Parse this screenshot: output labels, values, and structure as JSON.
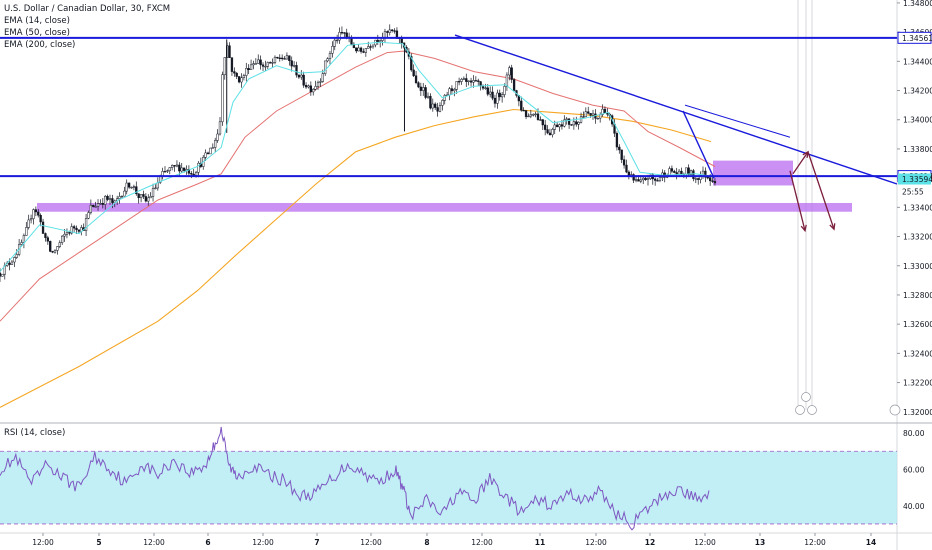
{
  "header": {
    "symbol_title": "U.S. Dollar / Canadian Dollar, 30, FXCM",
    "indicators": [
      "EMA (14, close)",
      "EMA (50, close)",
      "EMA (200, close)"
    ]
  },
  "rsi_panel": {
    "title": "RSI (14, close)"
  },
  "colors": {
    "candle": "#131722",
    "ema14": "#5ce1e6",
    "ema50": "#e57373",
    "ema200": "#f5a623",
    "hline": "#1a1adb",
    "trend": "#1a1adb",
    "zone": "#b86bf0",
    "arrow": "#7b1f3c",
    "rsi_line": "#7e57c2",
    "rsi_band": "#b2ebf2",
    "rsi_dashed": "#a05cc8"
  },
  "chart_data": [
    {
      "type": "candlestick",
      "title": "U.S. Dollar / Canadian Dollar, 30, FXCM",
      "x_ticks": [
        "12:00",
        "5",
        "12:00",
        "6",
        "12:00",
        "7",
        "12:00",
        "8",
        "12:00",
        "11",
        "12:00",
        "12",
        "12:00",
        "13",
        "12:00",
        "14"
      ],
      "y_ticks": [
        1.348,
        1.346,
        1.344,
        1.342,
        1.34,
        1.338,
        1.336,
        1.334,
        1.332,
        1.33,
        1.328,
        1.326,
        1.324,
        1.322,
        1.32
      ],
      "ylim": [
        1.3193,
        1.3482
      ],
      "grid": false,
      "price_labels": [
        {
          "label": "1.34561",
          "value": 1.34561,
          "style": "blue-outline"
        },
        {
          "label": "1.33614",
          "value": 1.33614,
          "style": "blue-outline"
        },
        {
          "label": "1.33594",
          "value": 1.33594,
          "style": "cyan-fill"
        },
        {
          "label": "25:55",
          "value": 1.3351,
          "style": "plain"
        }
      ],
      "horizontal_lines": [
        1.34561,
        1.33614
      ],
      "trendline": {
        "from": [
          0.0,
          1.3458
        ],
        "to": [
          1.0,
          1.3362
        ]
      },
      "upper_channel": {
        "from": [
          0.0,
          1.3411
        ],
        "to": [
          1.0,
          1.3391
        ]
      },
      "zones": [
        {
          "y_top": 1.3372,
          "y_bottom": 1.3355,
          "x_start": 0.0,
          "x_end": 1.0
        },
        {
          "y_top": 1.3343,
          "y_bottom": 1.3337,
          "x_start": 0.0,
          "x_end": 1.0
        }
      ],
      "arrows": [
        {
          "from": [
            0,
            1.3365
          ],
          "to": [
            0,
            1.3324
          ]
        },
        {
          "from": [
            0,
            1.3363
          ],
          "to": [
            0,
            1.3378
          ]
        },
        {
          "from": [
            0,
            1.3378
          ],
          "to": [
            0,
            1.3325
          ]
        }
      ],
      "price_path": [
        [
          0,
          1.3295
        ],
        [
          0.012,
          1.3302
        ],
        [
          0.022,
          1.331
        ],
        [
          0.03,
          1.3318
        ],
        [
          0.038,
          1.3332
        ],
        [
          0.043,
          1.3341
        ],
        [
          0.05,
          1.3332
        ],
        [
          0.058,
          1.3318
        ],
        [
          0.065,
          1.3308
        ],
        [
          0.073,
          1.3313
        ],
        [
          0.083,
          1.3322
        ],
        [
          0.095,
          1.3327
        ],
        [
          0.105,
          1.3325
        ],
        [
          0.115,
          1.334
        ],
        [
          0.125,
          1.3343
        ],
        [
          0.135,
          1.3346
        ],
        [
          0.145,
          1.3342
        ],
        [
          0.155,
          1.3351
        ],
        [
          0.165,
          1.3357
        ],
        [
          0.175,
          1.3348
        ],
        [
          0.185,
          1.3344
        ],
        [
          0.195,
          1.3352
        ],
        [
          0.205,
          1.3362
        ],
        [
          0.215,
          1.3366
        ],
        [
          0.225,
          1.3368
        ],
        [
          0.235,
          1.3366
        ],
        [
          0.245,
          1.3364
        ],
        [
          0.255,
          1.3371
        ],
        [
          0.262,
          1.3376
        ],
        [
          0.27,
          1.3383
        ],
        [
          0.278,
          1.3394
        ],
        [
          0.282,
          1.3438
        ],
        [
          0.287,
          1.3452
        ],
        [
          0.295,
          1.3431
        ],
        [
          0.305,
          1.3427
        ],
        [
          0.315,
          1.3437
        ],
        [
          0.325,
          1.3441
        ],
        [
          0.335,
          1.3436
        ],
        [
          0.345,
          1.3439
        ],
        [
          0.355,
          1.3443
        ],
        [
          0.365,
          1.3441
        ],
        [
          0.375,
          1.3433
        ],
        [
          0.385,
          1.3425
        ],
        [
          0.395,
          1.3421
        ],
        [
          0.405,
          1.3428
        ],
        [
          0.415,
          1.3443
        ],
        [
          0.425,
          1.3455
        ],
        [
          0.435,
          1.346
        ],
        [
          0.445,
          1.3452
        ],
        [
          0.455,
          1.3446
        ],
        [
          0.465,
          1.345
        ],
        [
          0.475,
          1.3455
        ],
        [
          0.485,
          1.3457
        ],
        [
          0.495,
          1.3461
        ],
        [
          0.505,
          1.3455
        ],
        [
          0.512,
          1.3451
        ],
        [
          0.518,
          1.3441
        ],
        [
          0.525,
          1.3425
        ],
        [
          0.535,
          1.3422
        ],
        [
          0.545,
          1.341
        ],
        [
          0.555,
          1.3405
        ],
        [
          0.565,
          1.3417
        ],
        [
          0.575,
          1.3423
        ],
        [
          0.585,
          1.3426
        ],
        [
          0.595,
          1.3424
        ],
        [
          0.605,
          1.3425
        ],
        [
          0.615,
          1.3421
        ],
        [
          0.625,
          1.3413
        ],
        [
          0.635,
          1.3419
        ],
        [
          0.645,
          1.3434
        ],
        [
          0.652,
          1.3419
        ],
        [
          0.66,
          1.3408
        ],
        [
          0.668,
          1.3402
        ],
        [
          0.675,
          1.3406
        ],
        [
          0.685,
          1.3399
        ],
        [
          0.695,
          1.3391
        ],
        [
          0.705,
          1.3397
        ],
        [
          0.715,
          1.3399
        ],
        [
          0.725,
          1.3397
        ],
        [
          0.735,
          1.3402
        ],
        [
          0.745,
          1.3404
        ],
        [
          0.755,
          1.34
        ],
        [
          0.765,
          1.3408
        ],
        [
          0.772,
          1.3401
        ],
        [
          0.778,
          1.3388
        ],
        [
          0.785,
          1.3376
        ],
        [
          0.792,
          1.3366
        ],
        [
          0.8,
          1.3359
        ],
        [
          0.81,
          1.3356
        ],
        [
          0.82,
          1.3361
        ],
        [
          0.83,
          1.3358
        ],
        [
          0.84,
          1.3363
        ],
        [
          0.85,
          1.3365
        ],
        [
          0.86,
          1.3362
        ],
        [
          0.87,
          1.3365
        ],
        [
          0.88,
          1.336
        ],
        [
          0.89,
          1.3363
        ],
        [
          0.9,
          1.336
        ],
        [
          0.905,
          1.3359
        ]
      ],
      "ema14_path": [
        [
          0,
          1.3296
        ],
        [
          0.05,
          1.3328
        ],
        [
          0.1,
          1.3322
        ],
        [
          0.15,
          1.3345
        ],
        [
          0.2,
          1.3357
        ],
        [
          0.25,
          1.3368
        ],
        [
          0.28,
          1.3381
        ],
        [
          0.295,
          1.3412
        ],
        [
          0.315,
          1.3428
        ],
        [
          0.35,
          1.3437
        ],
        [
          0.38,
          1.3432
        ],
        [
          0.41,
          1.3433
        ],
        [
          0.44,
          1.3451
        ],
        [
          0.48,
          1.3453
        ],
        [
          0.51,
          1.3452
        ],
        [
          0.53,
          1.3434
        ],
        [
          0.56,
          1.3415
        ],
        [
          0.6,
          1.3423
        ],
        [
          0.64,
          1.3424
        ],
        [
          0.665,
          1.3413
        ],
        [
          0.7,
          1.3398
        ],
        [
          0.74,
          1.3401
        ],
        [
          0.77,
          1.3405
        ],
        [
          0.79,
          1.3385
        ],
        [
          0.81,
          1.3364
        ],
        [
          0.84,
          1.3362
        ],
        [
          0.88,
          1.3363
        ],
        [
          0.905,
          1.3361
        ]
      ],
      "ema50_path": [
        [
          0,
          1.3262
        ],
        [
          0.05,
          1.3291
        ],
        [
          0.1,
          1.3309
        ],
        [
          0.15,
          1.3327
        ],
        [
          0.2,
          1.3345
        ],
        [
          0.25,
          1.3356
        ],
        [
          0.28,
          1.3363
        ],
        [
          0.31,
          1.3388
        ],
        [
          0.35,
          1.3406
        ],
        [
          0.4,
          1.3421
        ],
        [
          0.45,
          1.3436
        ],
        [
          0.49,
          1.3446
        ],
        [
          0.51,
          1.3447
        ],
        [
          0.55,
          1.3442
        ],
        [
          0.6,
          1.3433
        ],
        [
          0.65,
          1.3428
        ],
        [
          0.7,
          1.3418
        ],
        [
          0.75,
          1.341
        ],
        [
          0.79,
          1.3406
        ],
        [
          0.82,
          1.3392
        ],
        [
          0.86,
          1.3381
        ],
        [
          0.905,
          1.3368
        ]
      ],
      "ema200_path": [
        [
          0,
          1.3203
        ],
        [
          0.1,
          1.3231
        ],
        [
          0.2,
          1.3262
        ],
        [
          0.25,
          1.3283
        ],
        [
          0.3,
          1.3308
        ],
        [
          0.35,
          1.3332
        ],
        [
          0.4,
          1.3356
        ],
        [
          0.45,
          1.3378
        ],
        [
          0.5,
          1.3388
        ],
        [
          0.55,
          1.3396
        ],
        [
          0.6,
          1.3402
        ],
        [
          0.65,
          1.3407
        ],
        [
          0.7,
          1.3405
        ],
        [
          0.75,
          1.3403
        ],
        [
          0.8,
          1.3399
        ],
        [
          0.85,
          1.3393
        ],
        [
          0.9,
          1.3385
        ]
      ]
    },
    {
      "type": "line",
      "title": "RSI (14, close)",
      "y_ticks": [
        80,
        60,
        40
      ],
      "ylim": [
        25,
        85
      ],
      "band": [
        30,
        70
      ],
      "values": [
        [
          0,
          60
        ],
        [
          0.02,
          66
        ],
        [
          0.04,
          52
        ],
        [
          0.06,
          63
        ],
        [
          0.08,
          55
        ],
        [
          0.1,
          50
        ],
        [
          0.12,
          67
        ],
        [
          0.14,
          60
        ],
        [
          0.16,
          52
        ],
        [
          0.18,
          63
        ],
        [
          0.2,
          57
        ],
        [
          0.22,
          65
        ],
        [
          0.24,
          58
        ],
        [
          0.26,
          62
        ],
        [
          0.27,
          72
        ],
        [
          0.28,
          82
        ],
        [
          0.29,
          62
        ],
        [
          0.3,
          56
        ],
        [
          0.32,
          62
        ],
        [
          0.34,
          57
        ],
        [
          0.36,
          54
        ],
        [
          0.38,
          45
        ],
        [
          0.4,
          47
        ],
        [
          0.42,
          55
        ],
        [
          0.44,
          63
        ],
        [
          0.46,
          58
        ],
        [
          0.48,
          53
        ],
        [
          0.5,
          60
        ],
        [
          0.51,
          50
        ],
        [
          0.52,
          34
        ],
        [
          0.54,
          43
        ],
        [
          0.56,
          35
        ],
        [
          0.58,
          48
        ],
        [
          0.6,
          42
        ],
        [
          0.62,
          55
        ],
        [
          0.64,
          45
        ],
        [
          0.66,
          36
        ],
        [
          0.68,
          43
        ],
        [
          0.7,
          40
        ],
        [
          0.72,
          47
        ],
        [
          0.74,
          43
        ],
        [
          0.76,
          48
        ],
        [
          0.78,
          36
        ],
        [
          0.8,
          30
        ],
        [
          0.82,
          38
        ],
        [
          0.84,
          46
        ],
        [
          0.86,
          49
        ],
        [
          0.88,
          44
        ],
        [
          0.9,
          47
        ]
      ]
    }
  ]
}
